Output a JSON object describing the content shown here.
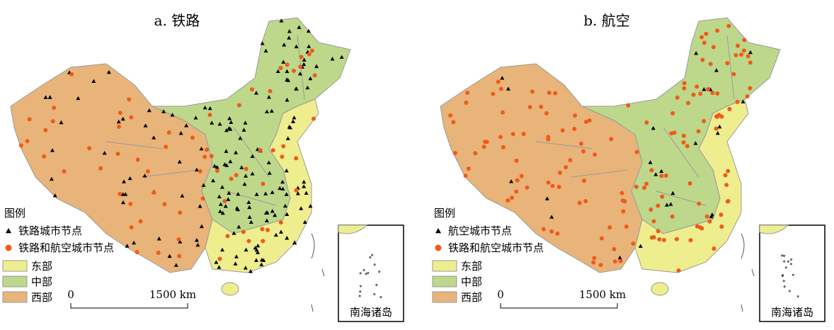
{
  "panels": [
    {
      "title": "a. 铁路",
      "legend": {
        "title": "图例",
        "items": [
          "铁路城市节点",
          "铁路和航空城市节点",
          "东部",
          "中部",
          "西部"
        ]
      },
      "scale": {
        "zero": "0",
        "label": "1500 km"
      },
      "inset": "南海诸岛"
    },
    {
      "title": "b. 航空",
      "legend": {
        "title": "图例",
        "items": [
          "航空城市节点",
          "铁路和航空城市节点",
          "东部",
          "中部",
          "西部"
        ]
      },
      "scale": {
        "zero": "0",
        "label": "1500 km"
      },
      "inset": "南海诸岛"
    }
  ]
}
